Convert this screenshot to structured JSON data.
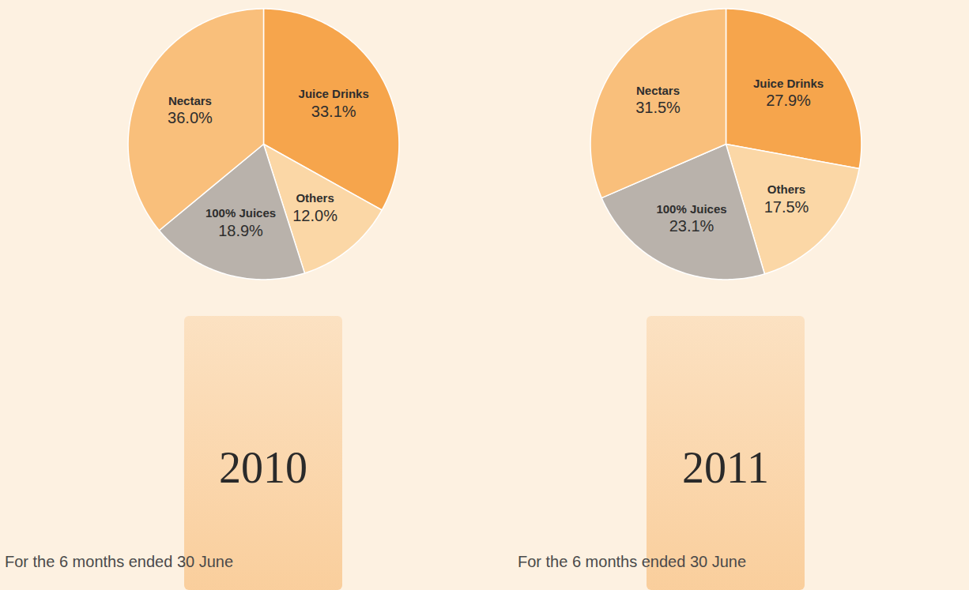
{
  "chart_data": [
    {
      "type": "pie",
      "title": "2010",
      "subtitle": "For the 6 months ended 30 June",
      "categories": [
        "Juice Drinks",
        "Others",
        "100% Juices",
        "Nectars"
      ],
      "values": [
        33.1,
        12.0,
        18.9,
        36.0
      ],
      "value_labels": [
        "33.1%",
        "12.0%",
        "18.9%",
        "36.0%"
      ],
      "colors": [
        "#f6a54c",
        "#fbd7a6",
        "#b9b2ab",
        "#f9bf7b"
      ],
      "data_labels": true
    },
    {
      "type": "pie",
      "title": "2011",
      "subtitle": "For the 6 months ended 30 June",
      "categories": [
        "Juice Drinks",
        "Others",
        "100% Juices",
        "Nectars"
      ],
      "values": [
        27.9,
        17.5,
        23.1,
        31.5
      ],
      "value_labels": [
        "27.9%",
        "17.5%",
        "23.1%",
        "31.5%"
      ],
      "colors": [
        "#f6a54c",
        "#fbd7a6",
        "#b9b2ab",
        "#f9bf7b"
      ],
      "data_labels": true
    }
  ]
}
